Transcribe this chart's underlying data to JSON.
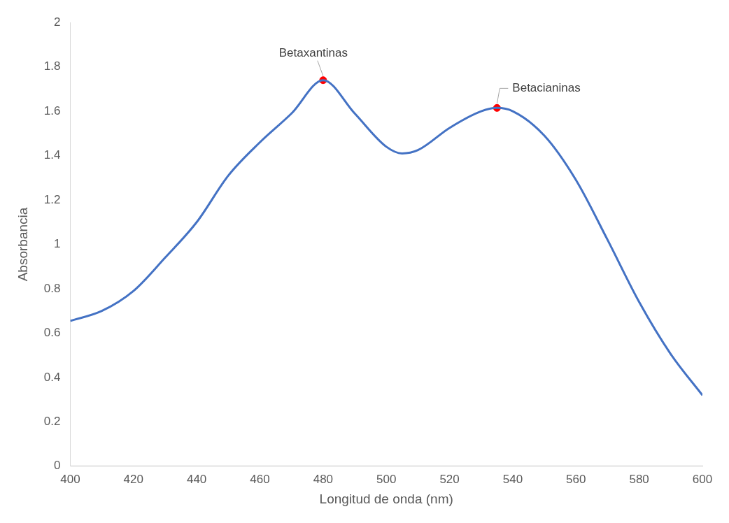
{
  "chart_data": {
    "type": "line",
    "xlabel": "Longitud de onda (nm)",
    "ylabel": "Absorbancia",
    "x": [
      400,
      410,
      420,
      430,
      440,
      450,
      460,
      470,
      480,
      490,
      500,
      505,
      510,
      520,
      530,
      535,
      540,
      550,
      560,
      570,
      580,
      590,
      600
    ],
    "series": [
      {
        "color": "#4472c4",
        "values": [
          0.655,
          0.7,
          0.79,
          0.94,
          1.1,
          1.31,
          1.46,
          1.59,
          1.74,
          1.59,
          1.44,
          1.41,
          1.425,
          1.525,
          1.6,
          1.615,
          1.6,
          1.49,
          1.29,
          1.02,
          0.74,
          0.505,
          0.32
        ]
      },
      {
        "type": "scatter",
        "color": "#ff0000",
        "x": [
          480,
          535
        ],
        "values": [
          1.74,
          1.615
        ]
      }
    ],
    "annotations": [
      {
        "text": "Betaxantinas",
        "x": 480,
        "y": 1.74
      },
      {
        "text": "Betacianinas",
        "x": 535,
        "y": 1.615
      }
    ],
    "xlim": [
      400,
      600
    ],
    "xticks": [
      400,
      420,
      440,
      460,
      480,
      500,
      520,
      540,
      560,
      580,
      600
    ],
    "ylim": [
      0,
      2
    ],
    "yticks": [
      0,
      0.2,
      0.4,
      0.6,
      0.8,
      1,
      1.2,
      1.4,
      1.6,
      1.8,
      2
    ],
    "grid": false,
    "legend": false,
    "line_style": "solid"
  }
}
